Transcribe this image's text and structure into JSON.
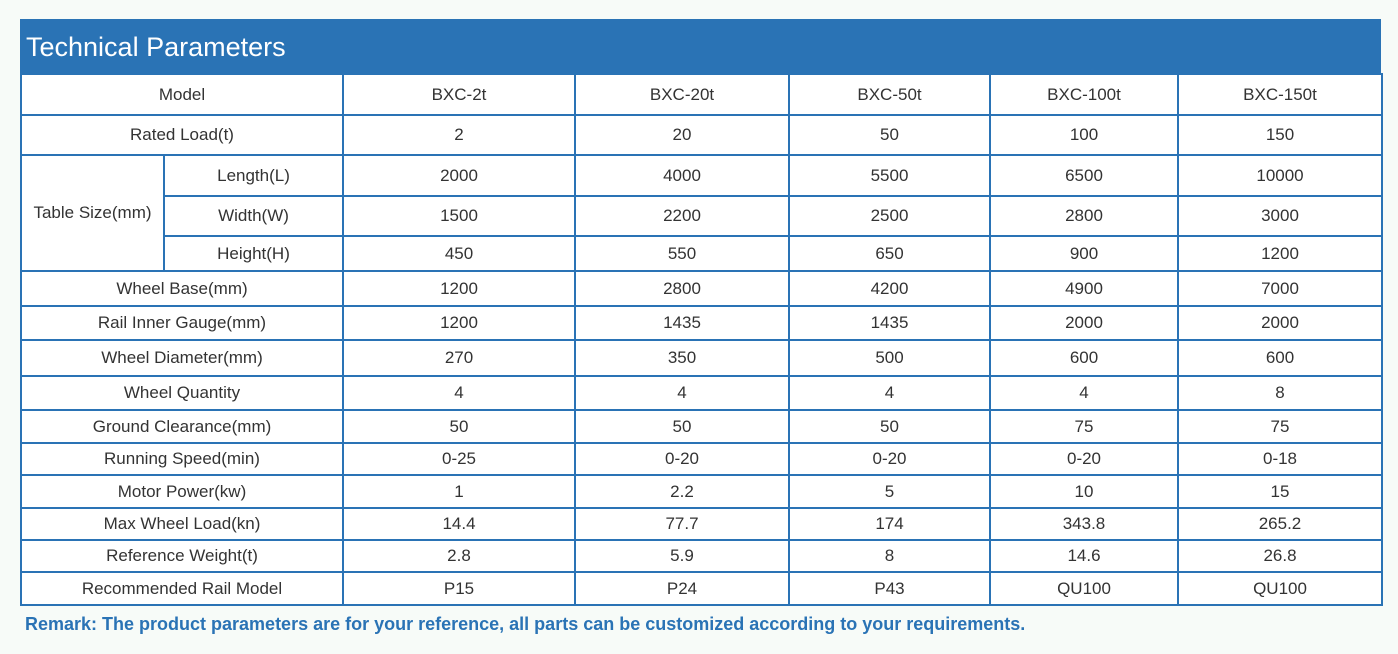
{
  "title": "Technical Parameters",
  "header": {
    "label": "Model",
    "models": [
      "BXC-2t",
      "BXC-20t",
      "BXC-50t",
      "BXC-100t",
      "BXC-150t"
    ]
  },
  "rated_load": {
    "label": "Rated Load(t)",
    "values": [
      "2",
      "20",
      "50",
      "100",
      "150"
    ]
  },
  "table_size": {
    "label": "Table Size(mm)",
    "rows": [
      {
        "label": "Length(L)",
        "values": [
          "2000",
          "4000",
          "5500",
          "6500",
          "10000"
        ]
      },
      {
        "label": "Width(W)",
        "values": [
          "1500",
          "2200",
          "2500",
          "2800",
          "3000"
        ]
      },
      {
        "label": "Height(H)",
        "values": [
          "450",
          "550",
          "650",
          "900",
          "1200"
        ]
      }
    ]
  },
  "rows": [
    {
      "label": "Wheel Base(mm)",
      "values": [
        "1200",
        "2800",
        "4200",
        "4900",
        "7000"
      ]
    },
    {
      "label": "Rail Inner Gauge(mm)",
      "values": [
        "1200",
        "1435",
        "1435",
        "2000",
        "2000"
      ]
    },
    {
      "label": "Wheel Diameter(mm)",
      "values": [
        "270",
        "350",
        "500",
        "600",
        "600"
      ]
    },
    {
      "label": "Wheel Quantity",
      "values": [
        "4",
        "4",
        "4",
        "4",
        "8"
      ]
    },
    {
      "label": "Ground Clearance(mm)",
      "values": [
        "50",
        "50",
        "50",
        "75",
        "75"
      ]
    },
    {
      "label": "Running Speed(min)",
      "values": [
        "0-25",
        "0-20",
        "0-20",
        "0-20",
        "0-18"
      ]
    },
    {
      "label": "Motor Power(kw)",
      "values": [
        "1",
        "2.2",
        "5",
        "10",
        "15"
      ]
    },
    {
      "label": "Max Wheel Load(kn)",
      "values": [
        "14.4",
        "77.7",
        "174",
        "343.8",
        "265.2"
      ]
    },
    {
      "label": "Reference Weight(t)",
      "values": [
        "2.8",
        "5.9",
        "8",
        "14.6",
        "26.8"
      ]
    },
    {
      "label": "Recommended Rail Model",
      "values": [
        "P15",
        "P24",
        "P43",
        "QU100",
        "QU100"
      ]
    }
  ],
  "remark": "Remark: The product parameters are for your reference, all parts can be customized according to your requirements.",
  "colors": {
    "accent": "#2a73b5",
    "background": "#f7fbf8",
    "text": "#333333"
  }
}
